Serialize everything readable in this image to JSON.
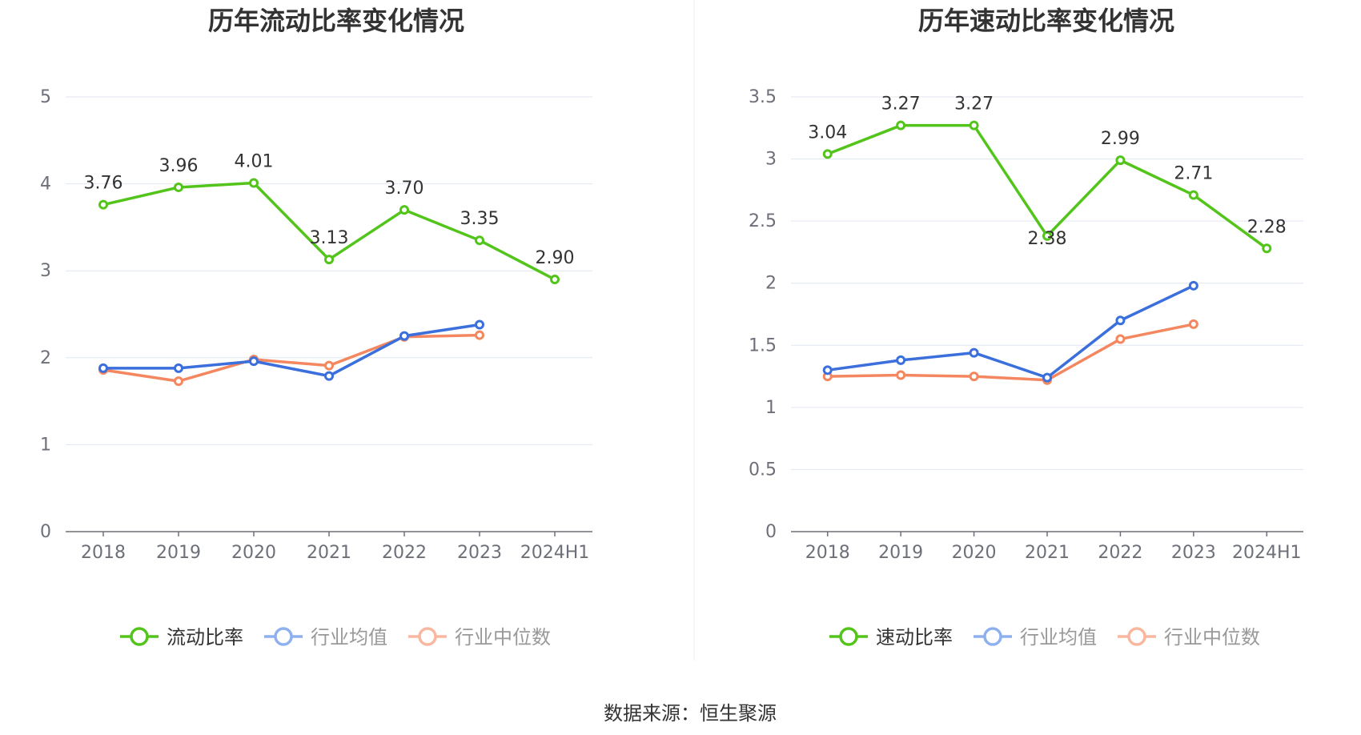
{
  "source": "数据来源：恒生聚源",
  "colors": {
    "main": "#52c41a",
    "avg": "#3a6fdc",
    "median": "#f4875f",
    "avg_legend": "#8fb0ef",
    "median_legend": "#f9b79f",
    "grid": "#e0e6f1",
    "axis": "#6e7079",
    "divider": "#eeeeee"
  },
  "chart_data": [
    {
      "type": "line",
      "title": "历年流动比率变化情况",
      "categories": [
        "2018",
        "2019",
        "2020",
        "2021",
        "2022",
        "2023",
        "2024H1"
      ],
      "ylim": [
        0,
        5
      ],
      "yticks": [
        "0",
        "1",
        "2",
        "3",
        "4",
        "5"
      ],
      "ytick_values": [
        0,
        1,
        2,
        3,
        4,
        5
      ],
      "grid": true,
      "legend_position": "bottom",
      "series": [
        {
          "key": "main",
          "name": "流动比率",
          "values": [
            3.76,
            3.96,
            4.01,
            3.13,
            3.7,
            3.35,
            2.9
          ],
          "labels": [
            "3.76",
            "3.96",
            "4.01",
            "3.13",
            "3.70",
            "3.35",
            "2.90"
          ]
        },
        {
          "key": "avg",
          "name": "行业均值",
          "values": [
            1.88,
            1.88,
            1.96,
            1.79,
            2.25,
            2.38,
            null
          ]
        },
        {
          "key": "median",
          "name": "行业中位数",
          "values": [
            1.86,
            1.73,
            1.98,
            1.91,
            2.24,
            2.26,
            null
          ]
        }
      ]
    },
    {
      "type": "line",
      "title": "历年速动比率变化情况",
      "categories": [
        "2018",
        "2019",
        "2020",
        "2021",
        "2022",
        "2023",
        "2024H1"
      ],
      "ylim": [
        0,
        3.5
      ],
      "yticks": [
        "0",
        "0.5",
        "1",
        "1.5",
        "2",
        "2.5",
        "3",
        "3.5"
      ],
      "ytick_values": [
        0,
        0.5,
        1,
        1.5,
        2,
        2.5,
        3,
        3.5
      ],
      "grid": true,
      "legend_position": "bottom",
      "series": [
        {
          "key": "main",
          "name": "速动比率",
          "values": [
            3.04,
            3.27,
            3.27,
            2.38,
            2.99,
            2.71,
            2.28
          ],
          "labels": [
            "3.04",
            "3.27",
            "3.27",
            "2.38",
            "2.99",
            "2.71",
            "2.28"
          ]
        },
        {
          "key": "avg",
          "name": "行业均值",
          "values": [
            1.3,
            1.38,
            1.44,
            1.24,
            1.7,
            1.98,
            null
          ]
        },
        {
          "key": "median",
          "name": "行业中位数",
          "values": [
            1.25,
            1.26,
            1.25,
            1.22,
            1.55,
            1.67,
            null
          ]
        }
      ]
    }
  ]
}
